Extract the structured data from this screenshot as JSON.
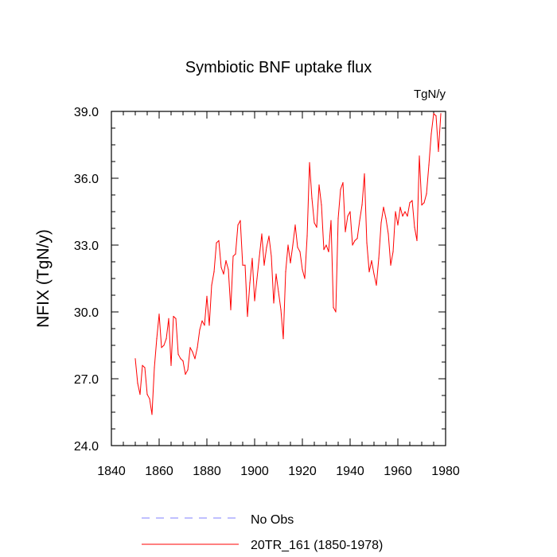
{
  "chart_data": {
    "type": "line",
    "title": "Symbiotic BNF uptake flux",
    "units": "TgN/y",
    "ylabel": "NFIX  (TgN/y)",
    "xlabel": "",
    "xlim": [
      1840,
      1980
    ],
    "ylim": [
      24.0,
      39.0
    ],
    "xticks": [
      1840,
      1860,
      1880,
      1900,
      1920,
      1940,
      1960,
      1980
    ],
    "xtick_labels": [
      "1840",
      "1860",
      "1880",
      "1900",
      "1920",
      "1940",
      "1960",
      "1980"
    ],
    "yticks": [
      24.0,
      27.0,
      30.0,
      33.0,
      36.0,
      39.0
    ],
    "ytick_labels": [
      "24.0",
      "27.0",
      "30.0",
      "33.0",
      "36.0",
      "39.0"
    ],
    "legend": [
      {
        "label": "No Obs",
        "color": "#8080ff",
        "style": "dashed"
      },
      {
        "label": "20TR_161 (1850-1978)",
        "color": "#ff0000",
        "style": "solid"
      }
    ],
    "series": [
      {
        "name": "20TR_161 (1850-1978)",
        "color": "#ff0000",
        "x": [
          1850,
          1851,
          1852,
          1853,
          1854,
          1855,
          1856,
          1857,
          1858,
          1859,
          1860,
          1861,
          1862,
          1863,
          1864,
          1865,
          1866,
          1867,
          1868,
          1869,
          1870,
          1871,
          1872,
          1873,
          1874,
          1875,
          1876,
          1877,
          1878,
          1879,
          1880,
          1881,
          1882,
          1883,
          1884,
          1885,
          1886,
          1887,
          1888,
          1889,
          1890,
          1891,
          1892,
          1893,
          1894,
          1895,
          1896,
          1897,
          1898,
          1899,
          1900,
          1901,
          1902,
          1903,
          1904,
          1905,
          1906,
          1907,
          1908,
          1909,
          1910,
          1911,
          1912,
          1913,
          1914,
          1915,
          1916,
          1917,
          1918,
          1919,
          1920,
          1921,
          1922,
          1923,
          1924,
          1925,
          1926,
          1927,
          1928,
          1929,
          1930,
          1931,
          1932,
          1933,
          1934,
          1935,
          1936,
          1937,
          1938,
          1939,
          1940,
          1941,
          1942,
          1943,
          1944,
          1945,
          1946,
          1947,
          1948,
          1949,
          1950,
          1951,
          1952,
          1953,
          1954,
          1955,
          1956,
          1957,
          1958,
          1959,
          1960,
          1961,
          1962,
          1963,
          1964,
          1965,
          1966,
          1967,
          1968,
          1969,
          1970,
          1971,
          1972,
          1973,
          1974,
          1975,
          1976,
          1977,
          1978
        ],
        "values": [
          27.9,
          26.8,
          26.3,
          27.6,
          27.5,
          26.3,
          26.1,
          25.4,
          27.5,
          28.8,
          29.9,
          28.4,
          28.5,
          28.8,
          29.7,
          27.6,
          29.8,
          29.7,
          28.1,
          27.9,
          27.8,
          27.2,
          27.4,
          28.4,
          28.2,
          27.9,
          28.4,
          29.2,
          29.6,
          29.4,
          30.7,
          29.4,
          31.2,
          31.8,
          33.1,
          33.2,
          32.0,
          31.7,
          32.3,
          31.9,
          30.1,
          32.5,
          32.6,
          33.9,
          34.1,
          32.1,
          32.1,
          29.8,
          31.3,
          32.4,
          30.5,
          31.5,
          32.5,
          33.5,
          32.1,
          32.9,
          33.4,
          32.5,
          30.4,
          31.7,
          30.9,
          30.1,
          28.8,
          31.8,
          33.0,
          32.2,
          33.0,
          33.9,
          32.9,
          32.7,
          31.9,
          31.5,
          33.4,
          36.7,
          35.1,
          34.0,
          33.8,
          35.7,
          34.8,
          32.8,
          33.0,
          32.7,
          34.1,
          30.2,
          30.0,
          34.2,
          35.5,
          35.8,
          33.6,
          34.3,
          34.5,
          33.0,
          33.2,
          33.3,
          34.1,
          34.8,
          36.2,
          33.1,
          31.8,
          32.3,
          31.7,
          31.2,
          32.4,
          34.0,
          34.7,
          34.2,
          33.5,
          32.1,
          32.7,
          34.5,
          33.9,
          34.7,
          34.3,
          34.5,
          34.3,
          34.9,
          35.0,
          33.8,
          33.2,
          37.0,
          34.8,
          34.9,
          35.3,
          36.6,
          38.0,
          38.9,
          38.8,
          37.2,
          38.9
        ]
      }
    ]
  }
}
